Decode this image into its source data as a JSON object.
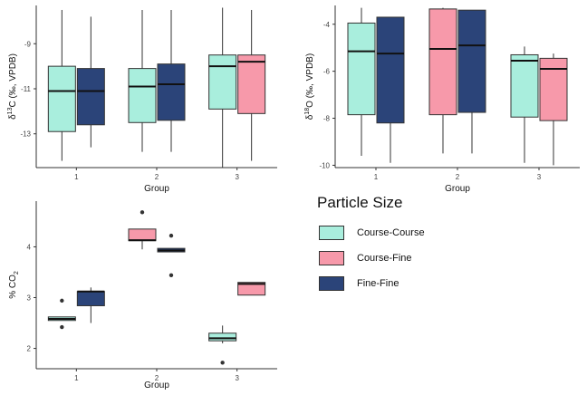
{
  "legend": {
    "title": "Particle Size",
    "items": [
      {
        "label": "Course-Course",
        "color": "#a9eedd"
      },
      {
        "label": "Course-Fine",
        "color": "#f799aa"
      },
      {
        "label": "Fine-Fine",
        "color": "#2b4479"
      }
    ]
  },
  "chart_data": [
    {
      "type": "boxplot",
      "xlabel": "Group",
      "ylabel_parts": [
        "δ",
        "13",
        "C (‰, VPDB)"
      ],
      "categories": [
        "1",
        "2",
        "3"
      ],
      "yticks": [
        -9,
        -11,
        -13
      ],
      "ylim": [
        -14.5,
        -7.3
      ],
      "grid": false,
      "series": [
        {
          "name": "Course-Course",
          "boxes": [
            {
              "group": "1",
              "whisker_low": -14.2,
              "q1": -12.9,
              "median": -11.1,
              "q3": -10.0,
              "whisker_high": -7.5
            },
            {
              "group": "2",
              "whisker_low": -13.8,
              "q1": -12.5,
              "median": -10.9,
              "q3": -10.1,
              "whisker_high": -7.5
            },
            {
              "group": "3",
              "whisker_low": -14.5,
              "q1": -11.9,
              "median": -10.0,
              "q3": -9.5,
              "whisker_high": -7.4
            }
          ]
        },
        {
          "name": "Course-Fine",
          "boxes": [
            {
              "group": "3",
              "whisker_low": -14.2,
              "q1": -12.1,
              "median": -9.8,
              "q3": -9.5,
              "whisker_high": -7.5
            }
          ]
        },
        {
          "name": "Fine-Fine",
          "boxes": [
            {
              "group": "1",
              "whisker_low": -13.6,
              "q1": -12.6,
              "median": -11.1,
              "q3": -10.1,
              "whisker_high": -7.8
            },
            {
              "group": "2",
              "whisker_low": -13.8,
              "q1": -12.4,
              "median": -10.8,
              "q3": -9.9,
              "whisker_high": -7.5
            }
          ]
        }
      ]
    },
    {
      "type": "boxplot",
      "xlabel": "Group",
      "ylabel_parts": [
        "δ",
        "18",
        "O (‰, VPDB)"
      ],
      "categories": [
        "1",
        "2",
        "3"
      ],
      "yticks": [
        -4,
        -6,
        -8,
        -10
      ],
      "ylim": [
        -10.1,
        -3.2
      ],
      "grid": false,
      "series": [
        {
          "name": "Course-Course",
          "boxes": [
            {
              "group": "1",
              "whisker_low": -9.6,
              "q1": -7.85,
              "median": -5.15,
              "q3": -3.95,
              "whisker_high": -3.3
            },
            {
              "group": "3",
              "whisker_low": -9.9,
              "q1": -7.95,
              "median": -5.55,
              "q3": -5.3,
              "whisker_high": -4.95
            }
          ]
        },
        {
          "name": "Course-Fine",
          "boxes": [
            {
              "group": "2",
              "whisker_low": -9.5,
              "q1": -7.85,
              "median": -5.05,
              "q3": -3.35,
              "whisker_high": -3.3
            },
            {
              "group": "3",
              "whisker_low": -10.0,
              "q1": -8.1,
              "median": -5.9,
              "q3": -5.45,
              "whisker_high": -5.25
            }
          ]
        },
        {
          "name": "Fine-Fine",
          "boxes": [
            {
              "group": "1",
              "whisker_low": -9.9,
              "q1": -8.2,
              "median": -5.25,
              "q3": -3.7,
              "whisker_high": -3.7
            },
            {
              "group": "2",
              "whisker_low": -9.5,
              "q1": -7.75,
              "median": -4.9,
              "q3": -3.4,
              "whisker_high": -3.4
            }
          ]
        }
      ]
    },
    {
      "type": "boxplot",
      "xlabel": "Group",
      "ylabel_parts": [
        "% CO",
        "2",
        ""
      ],
      "categories": [
        "1",
        "2",
        "3"
      ],
      "yticks": [
        4,
        3,
        2
      ],
      "ylim": [
        1.6,
        4.9
      ],
      "grid": false,
      "series": [
        {
          "name": "Course-Course",
          "boxes": [
            {
              "group": "1",
              "whisker_low": 2.55,
              "q1": 2.55,
              "median": 2.58,
              "q3": 2.62,
              "whisker_high": 2.62,
              "outliers": [
                2.42,
                2.94
              ]
            },
            {
              "group": "3",
              "whisker_low": 2.1,
              "q1": 2.15,
              "median": 2.2,
              "q3": 2.3,
              "whisker_high": 2.45,
              "outliers": [
                1.72
              ]
            }
          ]
        },
        {
          "name": "Course-Fine",
          "boxes": [
            {
              "group": "2",
              "whisker_low": 3.95,
              "q1": 4.12,
              "median": 4.13,
              "q3": 4.35,
              "whisker_high": 4.35,
              "outliers": [
                4.68
              ]
            },
            {
              "group": "3",
              "whisker_low": 3.05,
              "q1": 3.05,
              "median": 3.27,
              "q3": 3.3,
              "whisker_high": 3.3
            }
          ]
        },
        {
          "name": "Fine-Fine",
          "boxes": [
            {
              "group": "1",
              "whisker_low": 2.5,
              "q1": 2.84,
              "median": 3.12,
              "q3": 3.12,
              "whisker_high": 3.2
            },
            {
              "group": "2",
              "whisker_low": 3.9,
              "q1": 3.9,
              "median": 3.93,
              "q3": 3.97,
              "whisker_high": 3.97,
              "outliers": [
                3.44,
                4.22
              ]
            }
          ]
        }
      ]
    }
  ]
}
